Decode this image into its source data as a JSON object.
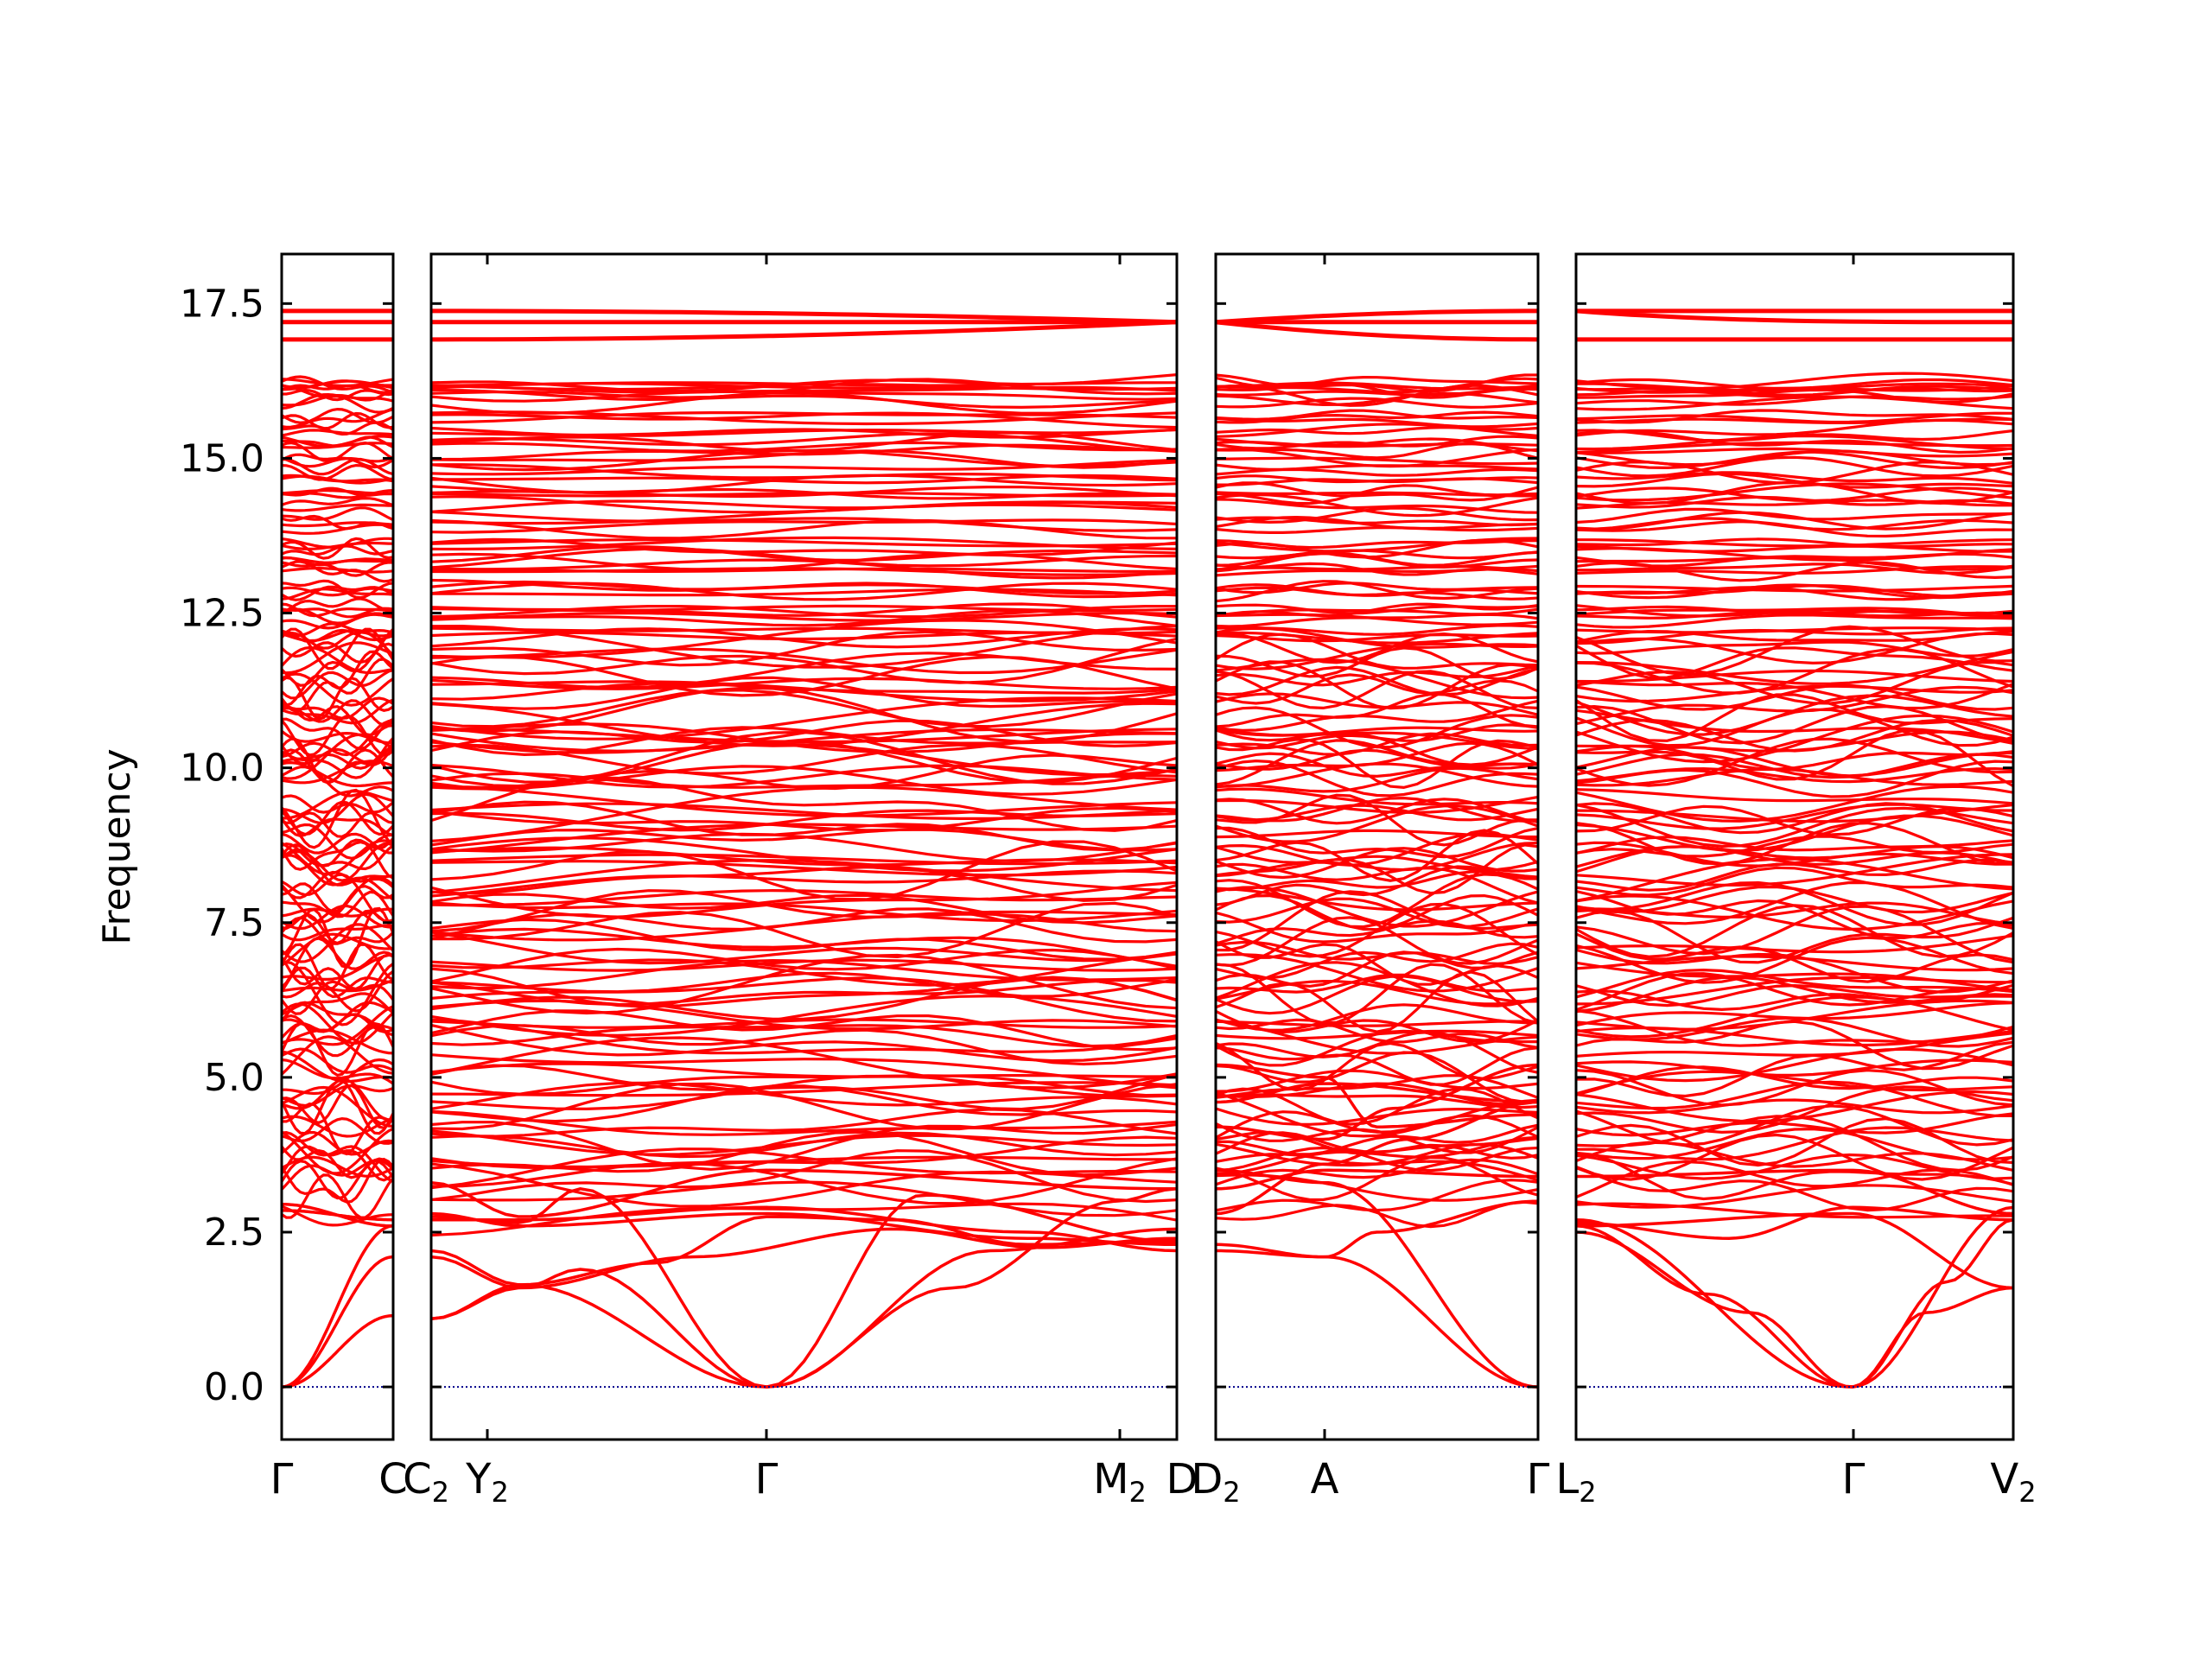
{
  "chart_data": {
    "type": "line",
    "title": "",
    "ylabel": "Frequency",
    "ylim": [
      -0.85,
      18.3
    ],
    "yticks": [
      0.0,
      2.5,
      5.0,
      7.5,
      10.0,
      12.5,
      15.0,
      17.5
    ],
    "ytick_labels": [
      "0.0",
      "2.5",
      "5.0",
      "7.5",
      "10.0",
      "12.5",
      "15.0",
      "17.5"
    ],
    "grid": false,
    "band_color": "#ff0000",
    "zero_line_color": "#00008b",
    "segments": [
      {
        "path": "Γ–C",
        "kpoint_labels": [
          {
            "main": "Γ",
            "sub": ""
          },
          {
            "main": "C",
            "sub": ""
          }
        ]
      },
      {
        "path": "C2–Y2–Γ–M2–D",
        "kpoint_labels": [
          {
            "main": "C",
            "sub": "2"
          },
          {
            "main": "Y",
            "sub": "2"
          },
          {
            "main": "Γ",
            "sub": ""
          },
          {
            "main": "M",
            "sub": "2"
          },
          {
            "main": "D",
            "sub": ""
          }
        ]
      },
      {
        "path": "D2–A–Γ",
        "kpoint_labels": [
          {
            "main": "D",
            "sub": "2"
          },
          {
            "main": "A",
            "sub": ""
          },
          {
            "main": "Γ",
            "sub": ""
          }
        ]
      },
      {
        "path": "L2–Γ–V2",
        "kpoint_labels": [
          {
            "main": "L",
            "sub": "2"
          },
          {
            "main": "Γ",
            "sub": ""
          },
          {
            "main": "V",
            "sub": "2"
          }
        ]
      }
    ],
    "bottom_labels": [
      {
        "main": "Γ",
        "sub": ""
      },
      {
        "main": "C",
        "sub": ""
      },
      {
        "main": "C",
        "sub": "2"
      },
      {
        "main": "Y",
        "sub": "2"
      },
      {
        "main": "Γ",
        "sub": ""
      },
      {
        "main": "M",
        "sub": "2"
      },
      {
        "main": "D",
        "sub": ""
      },
      {
        "main": "D",
        "sub": "2"
      },
      {
        "main": "A",
        "sub": ""
      },
      {
        "main": "Γ",
        "sub": ""
      },
      {
        "main": "L",
        "sub": "2"
      },
      {
        "main": "Γ",
        "sub": ""
      },
      {
        "main": "V",
        "sub": "2"
      }
    ],
    "top_flat_bands": [
      17.38,
      17.2,
      16.92
    ],
    "band_count": 150,
    "band_frequency_range": [
      0.0,
      16.25
    ]
  }
}
